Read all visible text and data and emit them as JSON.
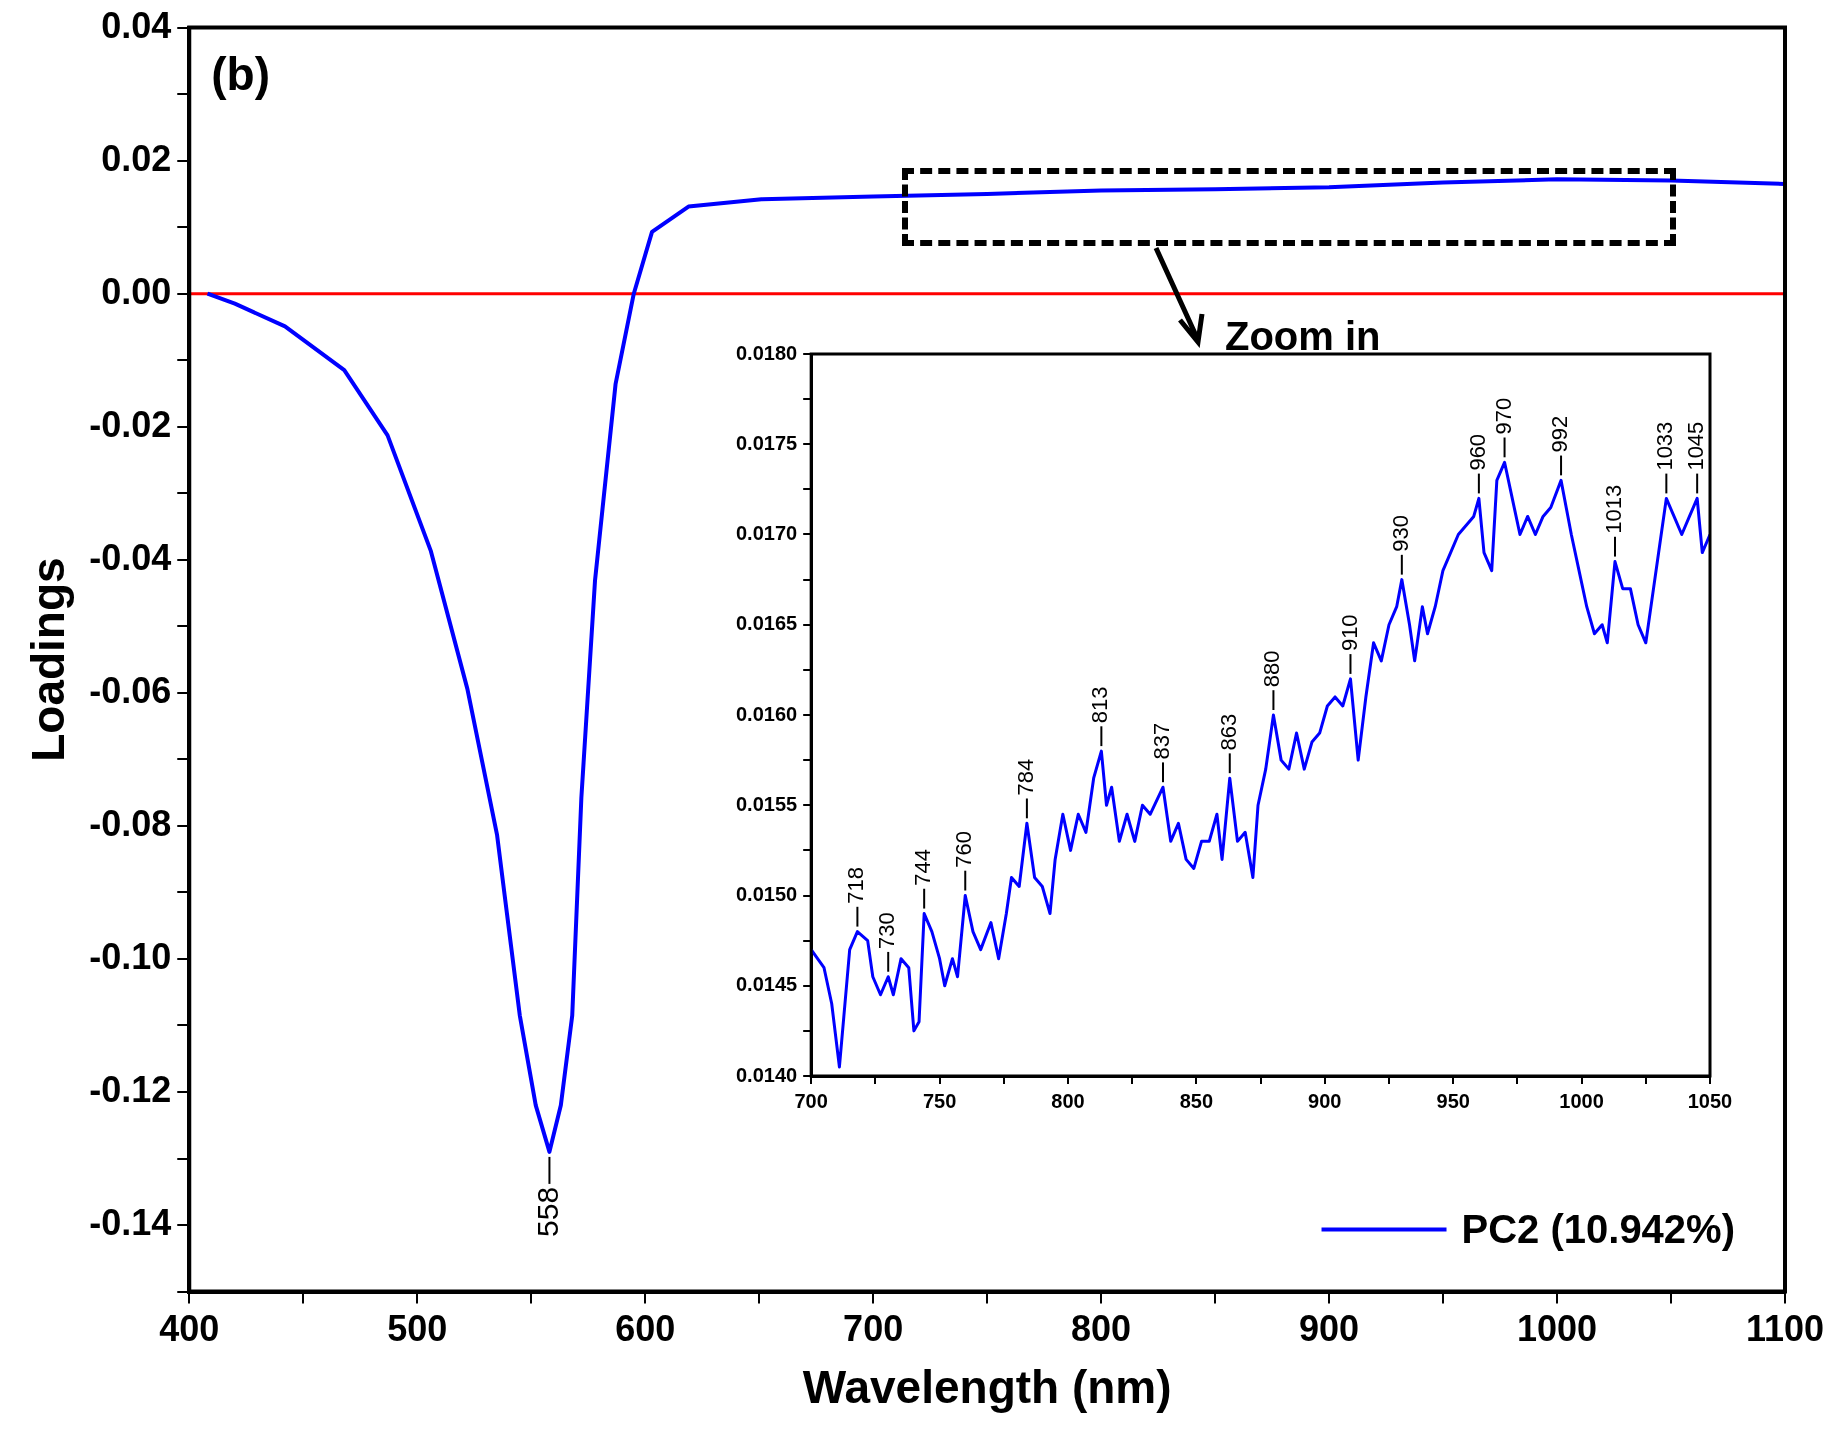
{
  "chart_data": [
    {
      "type": "line",
      "xlabel": "Wavelength (nm)",
      "ylabel": "Loadings",
      "legend": "bottom right",
      "x": [
        408,
        420,
        442,
        468,
        487,
        506,
        522,
        535,
        545,
        552,
        558,
        563,
        568,
        572,
        578,
        587,
        595,
        603,
        619,
        651,
        700,
        750,
        800,
        850,
        900,
        950,
        1000,
        1050,
        1100
      ],
      "series": [
        {
          "name": "PC2 (10.942%)",
          "color": "#0000ff",
          "values": [
            0,
            -0.0015,
            -0.0049,
            -0.0115,
            -0.0213,
            -0.0387,
            -0.0594,
            -0.0813,
            -0.1085,
            -0.122,
            -0.129,
            -0.122,
            -0.1085,
            -0.0758,
            -0.0431,
            -0.0136,
            0,
            0.0093,
            0.0131,
            0.0142,
            0.0146,
            0.015,
            0.0155,
            0.0157,
            0.016,
            0.0167,
            0.0172,
            0.017,
            0.0165
          ]
        }
      ],
      "xlim": [
        400,
        1100
      ],
      "ylim": [
        -0.15,
        0.04
      ],
      "xticks": [
        400,
        {
          "value": 450,
          "label": null
        },
        500,
        {
          "value": 550,
          "label": null
        },
        600,
        {
          "value": 650,
          "label": null
        },
        700,
        {
          "value": 750,
          "label": null
        },
        800,
        {
          "value": 850,
          "label": null
        },
        900,
        {
          "value": 950,
          "label": null
        },
        1000,
        {
          "value": 1050,
          "label": null
        },
        1100
      ],
      "yticks": [
        {
          "value": -0.15,
          "label": null
        },
        {
          "value": -0.14,
          "label": "-0.14"
        },
        {
          "value": -0.13,
          "label": null
        },
        {
          "value": -0.12,
          "label": "-0.12"
        },
        {
          "value": -0.11,
          "label": null
        },
        {
          "value": -0.1,
          "label": "-0.10"
        },
        {
          "value": -0.09,
          "label": null
        },
        {
          "value": -0.08,
          "label": "-0.08"
        },
        {
          "value": -0.07,
          "label": null
        },
        {
          "value": -0.06,
          "label": "-0.06"
        },
        {
          "value": -0.05,
          "label": null
        },
        {
          "value": -0.04,
          "label": "-0.04"
        },
        {
          "value": -0.03,
          "label": null
        },
        {
          "value": -0.02,
          "label": "-0.02"
        },
        {
          "value": -0.01,
          "label": null
        },
        {
          "value": 0,
          "label": "0.00"
        },
        {
          "value": 0.01,
          "label": null
        },
        {
          "value": 0.02,
          "label": "0.02"
        },
        {
          "value": 0.03,
          "label": null
        },
        {
          "value": 0.04,
          "label": "0.04"
        }
      ],
      "ref_lines": [
        {
          "axis": "y",
          "value": 0,
          "color": "#ff0000"
        }
      ],
      "annotations": [
        "(b)",
        "Zoom in",
        {
          "text": "558",
          "x": 558,
          "y": -0.129
        }
      ]
    },
    {
      "type": "line",
      "color": "#0000ff",
      "x": [
        700,
        705,
        708,
        711,
        715,
        718,
        722,
        724,
        727,
        730,
        732,
        735,
        738,
        740,
        742,
        744,
        747,
        750,
        752,
        755,
        757,
        760,
        763,
        766,
        770,
        773,
        776,
        778,
        781,
        784,
        787,
        790,
        793,
        795,
        798,
        801,
        804,
        807,
        810,
        813,
        815,
        817,
        820,
        823,
        826,
        829,
        832,
        837,
        840,
        843,
        846,
        849,
        852,
        855,
        858,
        860,
        863,
        866,
        869,
        872,
        874,
        877,
        880,
        883,
        886,
        889,
        892,
        895,
        898,
        901,
        904,
        907,
        910,
        913,
        916,
        919,
        922,
        925,
        928,
        930,
        933,
        935,
        938,
        940,
        943,
        946,
        949,
        952,
        955,
        958,
        960,
        962,
        965,
        967,
        970,
        973,
        976,
        979,
        982,
        985,
        988,
        992,
        996,
        999,
        1002,
        1005,
        1008,
        1010,
        1013,
        1016,
        1019,
        1022,
        1025,
        1028,
        1030,
        1033,
        1036,
        1039,
        1042,
        1045,
        1047,
        1050
      ],
      "values": [
        0.0147,
        0.0146,
        0.0144,
        0.01405,
        0.0147,
        0.0148,
        0.01475,
        0.01455,
        0.01445,
        0.01455,
        0.01445,
        0.01465,
        0.0146,
        0.01425,
        0.0143,
        0.0149,
        0.0148,
        0.01465,
        0.0145,
        0.01465,
        0.01455,
        0.015,
        0.0148,
        0.0147,
        0.01485,
        0.01465,
        0.0149,
        0.0151,
        0.01505,
        0.0154,
        0.0151,
        0.01505,
        0.0149,
        0.0152,
        0.01545,
        0.01525,
        0.01545,
        0.01535,
        0.01565,
        0.0158,
        0.0155,
        0.0156,
        0.0153,
        0.01545,
        0.0153,
        0.0155,
        0.01545,
        0.0156,
        0.0153,
        0.0154,
        0.0152,
        0.01515,
        0.0153,
        0.0153,
        0.01545,
        0.0152,
        0.01565,
        0.0153,
        0.01535,
        0.0151,
        0.0155,
        0.0157,
        0.016,
        0.01575,
        0.0157,
        0.0159,
        0.0157,
        0.01585,
        0.0159,
        0.01605,
        0.0161,
        0.01605,
        0.0162,
        0.01575,
        0.0161,
        0.0164,
        0.0163,
        0.0165,
        0.0166,
        0.01675,
        0.0165,
        0.0163,
        0.0166,
        0.01645,
        0.0166,
        0.0168,
        0.0169,
        0.017,
        0.01705,
        0.0171,
        0.0172,
        0.0169,
        0.0168,
        0.0173,
        0.0174,
        0.0172,
        0.017,
        0.0171,
        0.017,
        0.0171,
        0.01715,
        0.0173,
        0.017,
        0.0168,
        0.0166,
        0.01645,
        0.0165,
        0.0164,
        0.01685,
        0.0167,
        0.0167,
        0.0165,
        0.0164,
        0.0167,
        0.0169,
        0.0172,
        0.0171,
        0.017,
        0.0171,
        0.0172,
        0.0169,
        0.017
      ],
      "xlim": [
        700,
        1050
      ],
      "ylim": [
        0.014,
        0.018
      ],
      "xticks": [
        700,
        {
          "value": 725,
          "label": null
        },
        750,
        {
          "value": 775,
          "label": null
        },
        800,
        {
          "value": 825,
          "label": null
        },
        850,
        {
          "value": 875,
          "label": null
        },
        900,
        {
          "value": 925,
          "label": null
        },
        950,
        {
          "value": 975,
          "label": null
        },
        1000,
        {
          "value": 1025,
          "label": null
        },
        1050
      ],
      "yticks": [
        {
          "value": 0.014,
          "label": "0.0140"
        },
        {
          "value": 0.01425,
          "label": null
        },
        {
          "value": 0.0145,
          "label": "0.0145"
        },
        {
          "value": 0.01475,
          "label": null
        },
        {
          "value": 0.015,
          "label": "0.0150"
        },
        {
          "value": 0.01525,
          "label": null
        },
        {
          "value": 0.0155,
          "label": "0.0155"
        },
        {
          "value": 0.01575,
          "label": null
        },
        {
          "value": 0.016,
          "label": "0.0160"
        },
        {
          "value": 0.01625,
          "label": null
        },
        {
          "value": 0.0165,
          "label": "0.0165"
        },
        {
          "value": 0.01675,
          "label": null
        },
        {
          "value": 0.017,
          "label": "0.0170"
        },
        {
          "value": 0.01725,
          "label": null
        },
        {
          "value": 0.0175,
          "label": "0.0175"
        },
        {
          "value": 0.01775,
          "label": null
        },
        {
          "value": 0.018,
          "label": "0.0180"
        }
      ],
      "annotations": [
        {
          "text": "718",
          "x": 718,
          "y": 0.0148
        },
        {
          "text": "730",
          "x": 730,
          "y": 0.01455
        },
        {
          "text": "744",
          "x": 744,
          "y": 0.0149
        },
        {
          "text": "760",
          "x": 760,
          "y": 0.015
        },
        {
          "text": "784",
          "x": 784,
          "y": 0.0154
        },
        {
          "text": "813",
          "x": 813,
          "y": 0.0158
        },
        {
          "text": "837",
          "x": 837,
          "y": 0.0156
        },
        {
          "text": "863",
          "x": 863,
          "y": 0.01565
        },
        {
          "text": "880",
          "x": 880,
          "y": 0.016
        },
        {
          "text": "910",
          "x": 910,
          "y": 0.0162
        },
        {
          "text": "930",
          "x": 930,
          "y": 0.01675
        },
        {
          "text": "960",
          "x": 960,
          "y": 0.0172
        },
        {
          "text": "970",
          "x": 970,
          "y": 0.0174
        },
        {
          "text": "992",
          "x": 992,
          "y": 0.0173
        },
        {
          "text": "1013",
          "x": 1013,
          "y": 0.01685
        },
        {
          "text": "1033",
          "x": 1033,
          "y": 0.0172
        },
        {
          "text": "1045",
          "x": 1045,
          "y": 0.0172
        }
      ]
    }
  ]
}
